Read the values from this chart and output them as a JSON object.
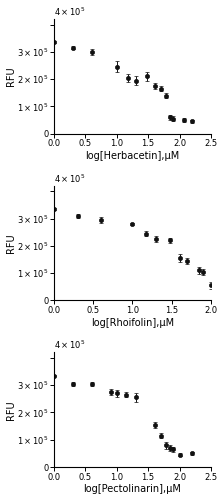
{
  "panels": [
    {
      "xlabel": "log[Herbacetin],μM",
      "xmax": 2.5,
      "xticks": [
        0.0,
        0.5,
        1.0,
        1.5,
        2.0,
        2.5
      ],
      "x_data": [
        0.0,
        0.301,
        0.602,
        1.0,
        1.176,
        1.301,
        1.477,
        1.602,
        1.699,
        1.778,
        1.845,
        1.903,
        2.079,
        2.204
      ],
      "y_data": [
        335000.0,
        315000.0,
        300000.0,
        245000.0,
        205000.0,
        195000.0,
        210000.0,
        175000.0,
        165000.0,
        140000.0,
        60000.0,
        55000.0,
        50000.0,
        45000.0
      ],
      "y_err": [
        4000.0,
        5000.0,
        10000.0,
        20000.0,
        15000.0,
        15000.0,
        15000.0,
        10000.0,
        10000.0,
        10000.0,
        10000.0,
        10000.0,
        7000.0,
        7000.0
      ],
      "sigmoid_p0": [
        40000.0,
        340000.0,
        1.8,
        2.0
      ]
    },
    {
      "xlabel": "log[Rhoifolin],μM",
      "xmax": 2.0,
      "xticks": [
        0.0,
        0.5,
        1.0,
        1.5,
        2.0
      ],
      "x_data": [
        0.0,
        0.301,
        0.602,
        1.0,
        1.176,
        1.301,
        1.477,
        1.602,
        1.699,
        1.845,
        1.903,
        2.0
      ],
      "y_data": [
        335000.0,
        310000.0,
        295000.0,
        280000.0,
        245000.0,
        225000.0,
        220000.0,
        155000.0,
        145000.0,
        110000.0,
        105000.0,
        55000.0
      ],
      "y_err": [
        5000.0,
        8000.0,
        12000.0,
        5000.0,
        8000.0,
        12000.0,
        8000.0,
        15000.0,
        10000.0,
        12000.0,
        10000.0,
        12000.0
      ],
      "sigmoid_p0": [
        40000.0,
        340000.0,
        1.5,
        1.5
      ]
    },
    {
      "xlabel": "log[Pectolinarin],μM",
      "xmax": 2.5,
      "xticks": [
        0.0,
        0.5,
        1.0,
        1.5,
        2.0,
        2.5
      ],
      "x_data": [
        0.0,
        0.301,
        0.602,
        0.903,
        1.0,
        1.146,
        1.301,
        1.602,
        1.699,
        1.778,
        1.845,
        1.903,
        2.0,
        2.204
      ],
      "y_data": [
        335000.0,
        305000.0,
        305000.0,
        275000.0,
        270000.0,
        265000.0,
        255000.0,
        155000.0,
        115000.0,
        80000.0,
        70000.0,
        65000.0,
        45000.0,
        50000.0
      ],
      "y_err": [
        3000.0,
        8000.0,
        8000.0,
        12000.0,
        12000.0,
        10000.0,
        15000.0,
        10000.0,
        10000.0,
        12000.0,
        10000.0,
        10000.0,
        5000.0,
        7000.0
      ],
      "sigmoid_p0": [
        40000.0,
        340000.0,
        1.45,
        3.0
      ]
    }
  ],
  "ylabel": "RFU",
  "ylim": [
    0,
    420000.0
  ],
  "yticks": [
    0,
    100000.0,
    200000.0,
    300000.0,
    400000.0
  ],
  "dot_color": "#111111",
  "line_color": "#111111",
  "bg_color": "#ffffff"
}
